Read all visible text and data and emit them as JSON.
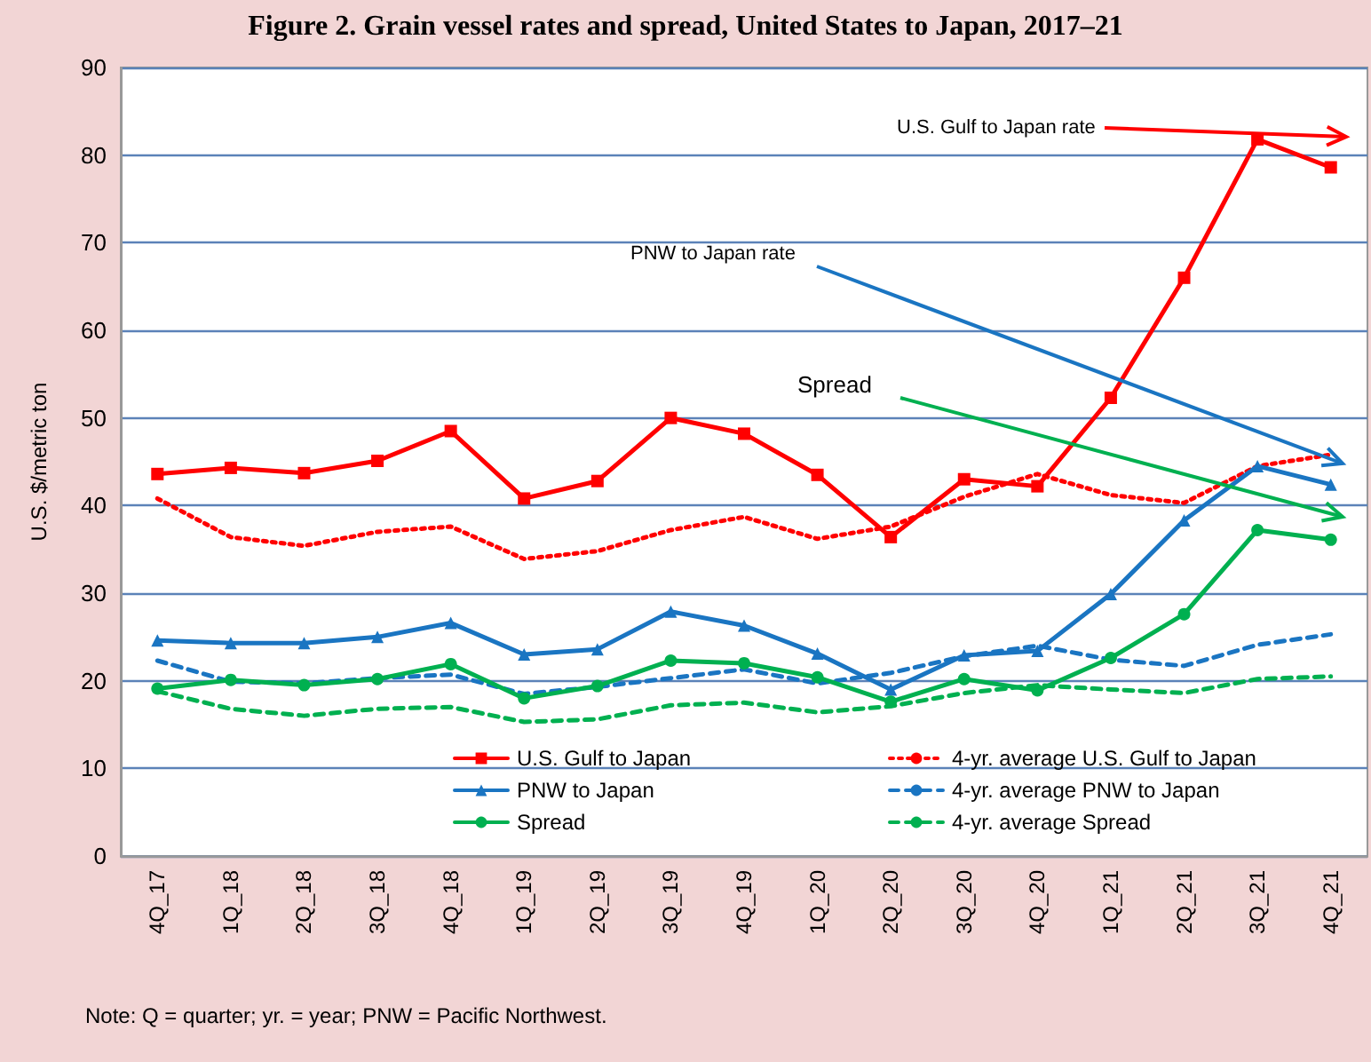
{
  "chart_data": {
    "type": "line",
    "title": "Figure 2. Grain vessel rates and spread, United States to Japan, 2017–21",
    "ylabel": "U.S. $/metric ton",
    "categories": [
      "4Q_17",
      "1Q_18",
      "2Q_18",
      "3Q_18",
      "4Q_18",
      "1Q_19",
      "2Q_19",
      "3Q_19",
      "4Q_19",
      "1Q_20",
      "2Q_20",
      "3Q_20",
      "4Q_20",
      "1Q_21",
      "2Q_21",
      "3Q_21",
      "4Q_21"
    ],
    "series": [
      {
        "name": "U.S. Gulf to Japan",
        "color": "#ff0000",
        "marker": "square",
        "line_style": "solid",
        "values": [
          43.6,
          44.3,
          43.7,
          45.1,
          48.5,
          40.8,
          42.8,
          50.0,
          48.2,
          43.5,
          36.4,
          43.0,
          42.2,
          52.3,
          66.0,
          81.8,
          78.6
        ]
      },
      {
        "name": "4-yr. average U.S. Gulf to Japan",
        "color": "#ff0000",
        "marker": "none",
        "line_style": "dotted",
        "values": [
          40.8,
          36.4,
          35.4,
          37.0,
          37.6,
          33.9,
          34.8,
          37.2,
          38.7,
          36.2,
          37.6,
          41.0,
          43.6,
          41.2,
          40.3,
          44.5,
          45.8
        ]
      },
      {
        "name": "PNW to Japan",
        "color": "#1a75c2",
        "marker": "triangle",
        "line_style": "solid",
        "values": [
          24.6,
          24.3,
          24.3,
          25.0,
          26.6,
          23.0,
          23.6,
          27.9,
          26.3,
          23.1,
          19.0,
          22.9,
          23.4,
          29.9,
          38.3,
          44.5,
          42.4
        ]
      },
      {
        "name": "4-yr. average PNW to Japan",
        "color": "#1a75c2",
        "marker": "none",
        "line_style": "dashed",
        "values": [
          22.3,
          19.9,
          19.7,
          20.3,
          20.7,
          18.5,
          19.3,
          20.3,
          21.3,
          19.7,
          20.9,
          22.8,
          24.0,
          22.4,
          21.7,
          24.1,
          25.3
        ]
      },
      {
        "name": "Spread",
        "color": "#00b050",
        "marker": "circle",
        "line_style": "solid",
        "values": [
          19.1,
          20.1,
          19.5,
          20.2,
          21.9,
          18.0,
          19.4,
          22.3,
          22.0,
          20.4,
          17.6,
          20.2,
          18.9,
          22.6,
          27.6,
          37.2,
          36.1
        ]
      },
      {
        "name": "4-yr. average Spread",
        "color": "#00b050",
        "marker": "none",
        "line_style": "dashed",
        "values": [
          18.8,
          16.8,
          16.0,
          16.8,
          17.0,
          15.3,
          15.6,
          17.2,
          17.5,
          16.4,
          17.1,
          18.6,
          19.5,
          19.0,
          18.6,
          20.2,
          20.5
        ]
      }
    ],
    "ylim": [
      0,
      90
    ],
    "yticks": [
      0,
      10,
      20,
      30,
      40,
      50,
      60,
      70,
      80,
      90
    ],
    "grid": "y",
    "legend": "bottom",
    "annotations": [
      "U.S. Gulf to Japan rate",
      "PNW to Japan rate",
      "Spread",
      "Note: Q = quarter; yr. = year; PNW = Pacific Northwest."
    ]
  }
}
